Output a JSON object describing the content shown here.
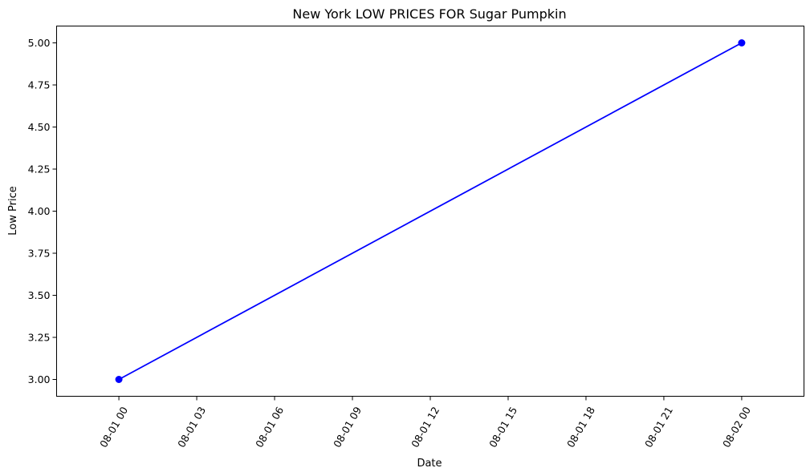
{
  "chart_data": {
    "type": "line",
    "title": "New York LOW PRICES FOR Sugar Pumpkin",
    "xlabel": "Date",
    "ylabel": "Low Price",
    "x_ticks": [
      "08-01 00",
      "08-01 03",
      "08-01 06",
      "08-01 09",
      "08-01 12",
      "08-01 15",
      "08-01 18",
      "08-01 21",
      "08-02 00"
    ],
    "y_ticks": [
      "3.00",
      "3.25",
      "3.50",
      "3.75",
      "4.00",
      "4.25",
      "4.50",
      "4.75",
      "5.00"
    ],
    "xlim": [
      "07-31 21:36",
      "08-02 02:24"
    ],
    "ylim": [
      2.9,
      5.1
    ],
    "grid": false,
    "series": [
      {
        "color": "#0000ff",
        "marker": "circle",
        "x": [
          "08-01 00:00",
          "08-02 00:00"
        ],
        "values": [
          3.0,
          5.0
        ]
      }
    ]
  }
}
